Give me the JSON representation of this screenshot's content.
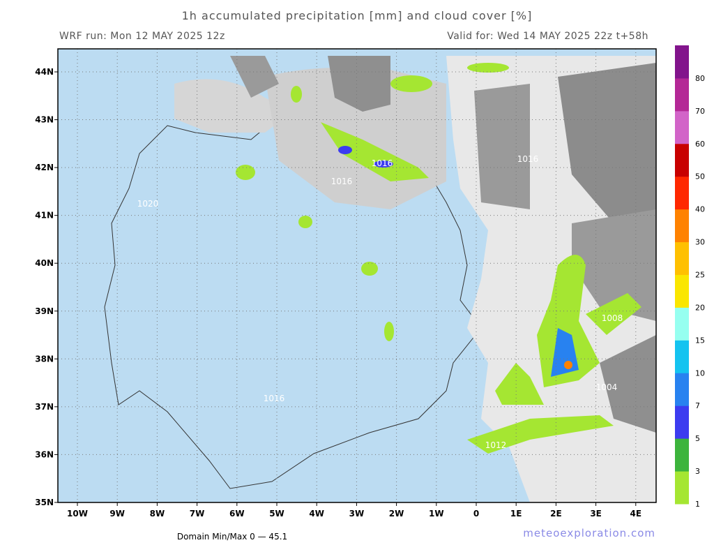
{
  "header": {
    "title": "1h accumulated precipitation [mm] and cloud cover [%]",
    "run": "WRF run: Mon 12 MAY 2025 12z",
    "valid": "Valid for: Wed 14 MAY 2025 22z  t+58h"
  },
  "map": {
    "lat_labels": [
      "44N",
      "43N",
      "42N",
      "41N",
      "40N",
      "39N",
      "38N",
      "37N",
      "36N",
      "35N"
    ],
    "lon_labels": [
      "10W",
      "9W",
      "8W",
      "7W",
      "6W",
      "5W",
      "4W",
      "3W",
      "2W",
      "1W",
      "0",
      "1E",
      "2E",
      "3E",
      "4E"
    ],
    "contour_labels": [
      "1016",
      "1016",
      "1016",
      "1020",
      "1016",
      "1012",
      "1008",
      "1004"
    ]
  },
  "colorbar": {
    "levels": [
      1,
      3,
      5,
      7,
      10,
      15,
      20,
      25,
      30,
      40,
      50,
      60,
      70,
      80
    ],
    "colors": [
      "#a5e632",
      "#3cb43c",
      "#3c3cf0",
      "#2882f0",
      "#14c3f0",
      "#96fff0",
      "#fae600",
      "#ffc000",
      "#ff8200",
      "#ff2800",
      "#c80000",
      "#d264c8",
      "#b42896",
      "#82148c"
    ]
  },
  "footer": {
    "minmax": "Domain Min/Max 0 — 45.1",
    "site": "meteoexploration.com"
  }
}
